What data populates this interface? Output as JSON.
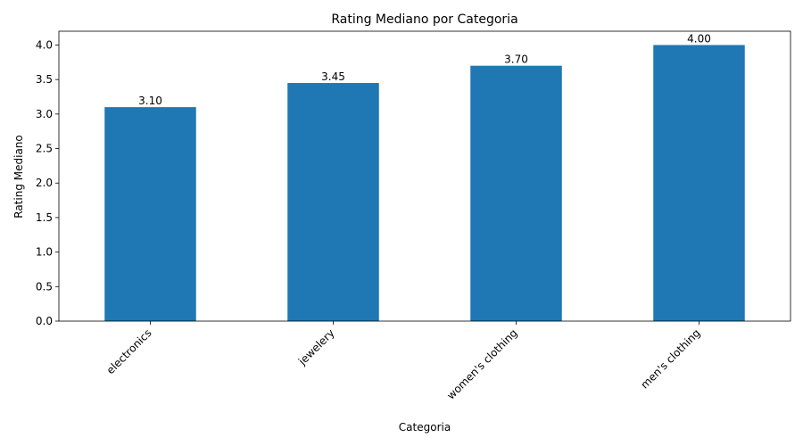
{
  "chart_data": {
    "type": "bar",
    "title": "Rating Mediano por Categoria",
    "xlabel": "Categoria",
    "ylabel": "Rating Mediano",
    "categories": [
      "electronics",
      "jewelery",
      "women's clothing",
      "men's clothing"
    ],
    "values": [
      3.1,
      3.45,
      3.7,
      4.0
    ],
    "data_labels": [
      "3.10",
      "3.45",
      "3.70",
      "4.00"
    ],
    "ylim": [
      0,
      4.2
    ],
    "yticks": [
      0.0,
      0.5,
      1.0,
      1.5,
      2.0,
      2.5,
      3.0,
      3.5,
      4.0
    ],
    "ytick_labels": [
      "0.0",
      "0.5",
      "1.0",
      "1.5",
      "2.0",
      "2.5",
      "3.0",
      "3.5",
      "4.0"
    ],
    "bar_color": "#1f77b4",
    "grid": false,
    "legend": "none"
  }
}
